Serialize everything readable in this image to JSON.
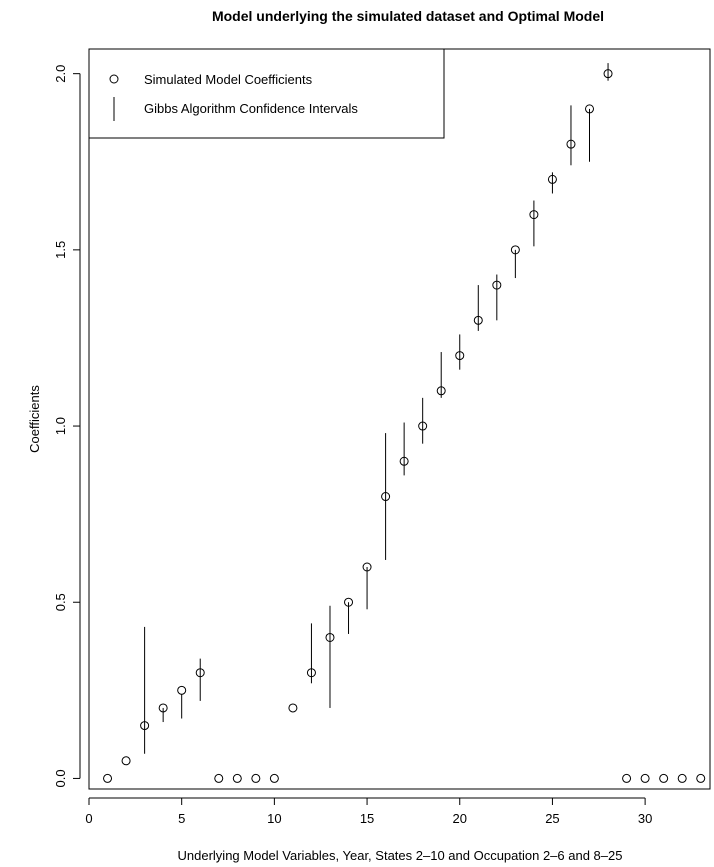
{
  "chart_data": {
    "type": "scatter",
    "title": "Model underlying the simulated dataset and Optimal Model",
    "xlabel": "Underlying Model Variables, Year, States 2–10 and Occupation 2–6 and 8–25",
    "ylabel": "Coefficients",
    "xlim": [
      0,
      33.5
    ],
    "ylim": [
      -0.03,
      2.07
    ],
    "x_ticks": [
      0,
      5,
      10,
      15,
      20,
      25,
      30
    ],
    "y_ticks": [
      0.0,
      0.5,
      1.0,
      1.5,
      2.0
    ],
    "x_tick_labels": [
      "0",
      "5",
      "10",
      "15",
      "20",
      "25",
      "30"
    ],
    "y_tick_labels": [
      "0.0",
      "0.5",
      "1.0",
      "1.5",
      "2.0"
    ],
    "grid": false,
    "legend_position": "top-left",
    "series": [
      {
        "name": "Simulated Model Coefficients",
        "marker": "open-circle",
        "x": [
          1,
          2,
          3,
          4,
          5,
          6,
          7,
          8,
          9,
          10,
          11,
          12,
          13,
          14,
          15,
          16,
          17,
          18,
          19,
          20,
          21,
          22,
          23,
          24,
          25,
          26,
          27,
          28,
          29,
          30,
          31,
          32,
          33
        ],
        "y": [
          0,
          0.05,
          0.15,
          0.2,
          0.25,
          0.3,
          0,
          0,
          0,
          0,
          0.2,
          0.3,
          0.4,
          0.5,
          0.6,
          0.8,
          0.9,
          1.0,
          1.1,
          1.2,
          1.3,
          1.4,
          1.5,
          1.6,
          1.7,
          1.8,
          1.9,
          2.0,
          0,
          0,
          0,
          0,
          0
        ]
      },
      {
        "name": "Gibbs Algorithm Confidence Intervals",
        "marker": "vertical-line",
        "intervals": [
          {
            "x": 3,
            "low": 0.07,
            "high": 0.43
          },
          {
            "x": 4,
            "low": 0.16,
            "high": 0.2
          },
          {
            "x": 5,
            "low": 0.17,
            "high": 0.24
          },
          {
            "x": 6,
            "low": 0.22,
            "high": 0.34
          },
          {
            "x": 12,
            "low": 0.27,
            "high": 0.44
          },
          {
            "x": 13,
            "low": 0.2,
            "high": 0.49
          },
          {
            "x": 14,
            "low": 0.41,
            "high": 0.5
          },
          {
            "x": 15,
            "low": 0.48,
            "high": 0.6
          },
          {
            "x": 16,
            "low": 0.62,
            "high": 0.98
          },
          {
            "x": 17,
            "low": 0.86,
            "high": 1.01
          },
          {
            "x": 18,
            "low": 0.95,
            "high": 1.08
          },
          {
            "x": 19,
            "low": 1.08,
            "high": 1.21
          },
          {
            "x": 20,
            "low": 1.16,
            "high": 1.26
          },
          {
            "x": 21,
            "low": 1.27,
            "high": 1.4
          },
          {
            "x": 22,
            "low": 1.3,
            "high": 1.43
          },
          {
            "x": 23,
            "low": 1.42,
            "high": 1.5
          },
          {
            "x": 24,
            "low": 1.51,
            "high": 1.64
          },
          {
            "x": 25,
            "low": 1.66,
            "high": 1.72
          },
          {
            "x": 26,
            "low": 1.74,
            "high": 1.91
          },
          {
            "x": 27,
            "low": 1.75,
            "high": 1.9
          },
          {
            "x": 28,
            "low": 1.98,
            "high": 2.03
          }
        ]
      }
    ]
  }
}
